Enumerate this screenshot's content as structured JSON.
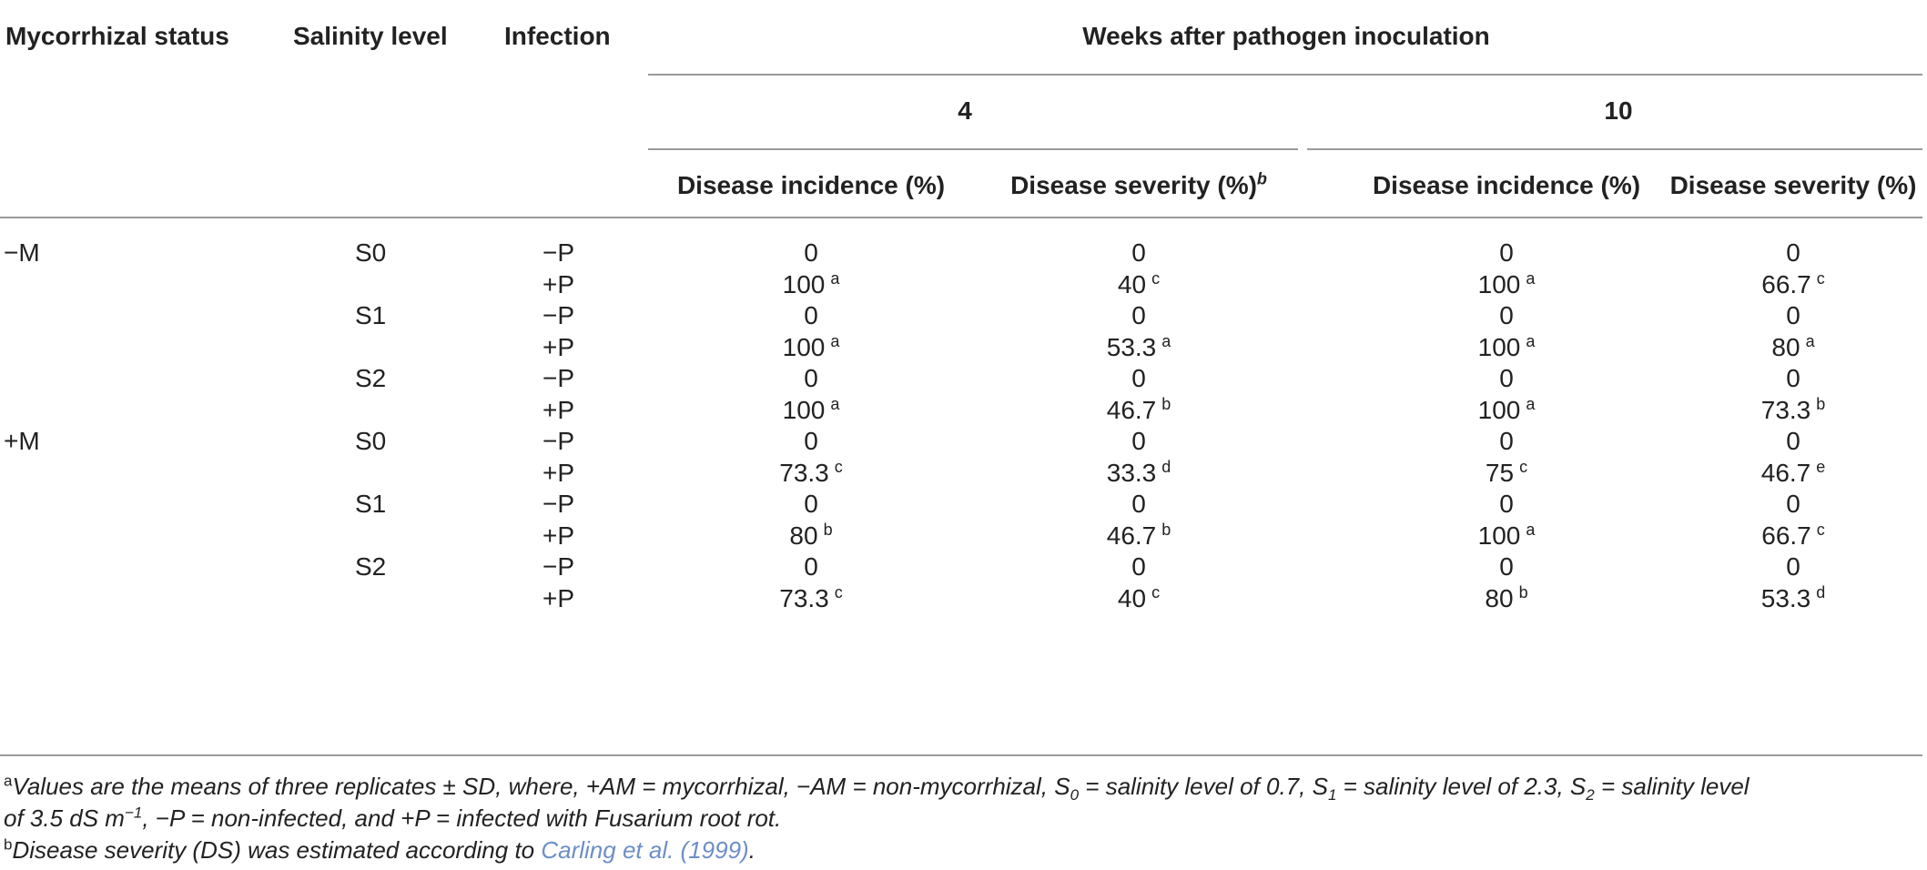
{
  "headers": {
    "mycorrhizal_status": "Mycorrhizal status",
    "salinity_level": "Salinity level",
    "infection": "Infection",
    "weeks": "Weeks after pathogen inoculation",
    "week4": "4",
    "week10": "10",
    "incidence": "Disease incidence (%)",
    "severity_b": "Disease severity (%)",
    "severity_b_mark": "b",
    "severity": "Disease severity (%)"
  },
  "rows": [
    {
      "m": "−M",
      "s": "S0",
      "p": "−P",
      "c1": "0",
      "c1s": "",
      "c2": "0",
      "c2s": "",
      "c3": "0",
      "c3s": "",
      "c4": "0",
      "c4s": ""
    },
    {
      "m": "",
      "s": "",
      "p": "+P",
      "c1": "100",
      "c1s": "a",
      "c2": "40",
      "c2s": "c",
      "c3": "100",
      "c3s": "a",
      "c4": "66.7",
      "c4s": "c"
    },
    {
      "m": "",
      "s": "S1",
      "p": "−P",
      "c1": "0",
      "c1s": "",
      "c2": "0",
      "c2s": "",
      "c3": "0",
      "c3s": "",
      "c4": "0",
      "c4s": ""
    },
    {
      "m": "",
      "s": "",
      "p": "+P",
      "c1": "100",
      "c1s": "a",
      "c2": "53.3",
      "c2s": "a",
      "c3": "100",
      "c3s": "a",
      "c4": "80",
      "c4s": "a"
    },
    {
      "m": "",
      "s": "S2",
      "p": "−P",
      "c1": "0",
      "c1s": "",
      "c2": "0",
      "c2s": "",
      "c3": "0",
      "c3s": "",
      "c4": "0",
      "c4s": ""
    },
    {
      "m": "",
      "s": "",
      "p": "+P",
      "c1": "100",
      "c1s": "a",
      "c2": "46.7",
      "c2s": "b",
      "c3": "100",
      "c3s": "a",
      "c4": "73.3",
      "c4s": "b"
    },
    {
      "m": "+M",
      "s": "S0",
      "p": "−P",
      "c1": "0",
      "c1s": "",
      "c2": "0",
      "c2s": "",
      "c3": "0",
      "c3s": "",
      "c4": "0",
      "c4s": ""
    },
    {
      "m": "",
      "s": "",
      "p": "+P",
      "c1": "73.3",
      "c1s": "c",
      "c2": "33.3",
      "c2s": "d",
      "c3": "75",
      "c3s": "c",
      "c4": "46.7",
      "c4s": "e"
    },
    {
      "m": "",
      "s": "S1",
      "p": "−P",
      "c1": "0",
      "c1s": "",
      "c2": "0",
      "c2s": "",
      "c3": "0",
      "c3s": "",
      "c4": "0",
      "c4s": ""
    },
    {
      "m": "",
      "s": "",
      "p": "+P",
      "c1": "80",
      "c1s": "b",
      "c2": "46.7",
      "c2s": "b",
      "c3": "100",
      "c3s": "a",
      "c4": "66.7",
      "c4s": "c"
    },
    {
      "m": "",
      "s": "S2",
      "p": "−P",
      "c1": "0",
      "c1s": "",
      "c2": "0",
      "c2s": "",
      "c3": "0",
      "c3s": "",
      "c4": "0",
      "c4s": ""
    },
    {
      "m": "",
      "s": "",
      "p": "+P",
      "c1": "73.3",
      "c1s": "c",
      "c2": "40",
      "c2s": "c",
      "c3": "80",
      "c3s": "b",
      "c4": "53.3",
      "c4s": "d"
    }
  ],
  "footnotes": {
    "a_mark": "a",
    "a_line1": "Values are the means of three replicates ± SD, where, +AM = mycorrhizal, −AM = non-mycorrhizal, S",
    "a_s0_sub": "0",
    "a_mid1": " = salinity level of 0.7, S",
    "a_s1_sub": "1",
    "a_mid2": " = salinity level of 2.3, S",
    "a_s2_sub": "2",
    "a_end1": " = salinity level",
    "a_line2_start": "of 3.5 dS m",
    "a_line2_exp": "−1",
    "a_line2_end": ", −P = non-infected, and +P = infected with Fusarium root rot.",
    "b_mark": "b",
    "b_text": "Disease severity (DS) was estimated according to ",
    "b_ref": "Carling et al. (1999)",
    "b_end": "."
  }
}
